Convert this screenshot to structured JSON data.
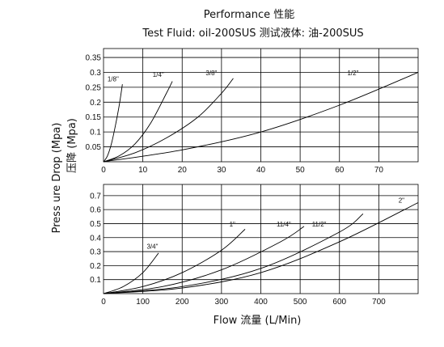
{
  "title": "Performance 性能",
  "subtitle": "Test Fluid: oil-200SUS 测试液体:  油-200SUS",
  "ylabel_en": "Press ure Drop (Mpa)",
  "ylabel_cn": "压降  (Mpa)",
  "xlabel": "Flow 流量 (L/Min)",
  "chart_data": [
    {
      "type": "line",
      "x_ticks": [
        0,
        10,
        20,
        30,
        40,
        50,
        60,
        70
      ],
      "y_ticks": [
        0.05,
        0.1,
        0.15,
        0.2,
        0.25,
        0.3,
        0.35
      ],
      "xlim": [
        0,
        80
      ],
      "ylim": [
        0,
        0.38
      ],
      "grid": true,
      "series": [
        {
          "name": "1/8\"",
          "x": [
            0,
            1,
            2,
            3,
            4,
            4.8
          ],
          "y": [
            0,
            0.02,
            0.06,
            0.12,
            0.19,
            0.26
          ],
          "label_at": [
            1,
            0.27
          ]
        },
        {
          "name": "1/4\"",
          "x": [
            0,
            4,
            8,
            12,
            16,
            17.5
          ],
          "y": [
            0,
            0.02,
            0.06,
            0.13,
            0.23,
            0.27
          ],
          "label_at": [
            12.5,
            0.285
          ]
        },
        {
          "name": "3/8\"",
          "x": [
            0,
            8,
            16,
            24,
            30,
            33
          ],
          "y": [
            0,
            0.03,
            0.08,
            0.15,
            0.23,
            0.28
          ],
          "label_at": [
            26,
            0.29
          ]
        },
        {
          "name": "1/2\"",
          "x": [
            0,
            20,
            40,
            60,
            80
          ],
          "y": [
            0,
            0.04,
            0.1,
            0.19,
            0.3
          ],
          "label_at": [
            62,
            0.29
          ]
        }
      ]
    },
    {
      "type": "line",
      "x_ticks": [
        0,
        100,
        200,
        300,
        400,
        500,
        600,
        700
      ],
      "y_ticks": [
        0.1,
        0.2,
        0.3,
        0.4,
        0.5,
        0.6,
        0.7
      ],
      "xlim": [
        0,
        800
      ],
      "ylim": [
        0,
        0.78
      ],
      "grid": true,
      "series": [
        {
          "name": "3/4\"",
          "x": [
            0,
            50,
            100,
            140
          ],
          "y": [
            0,
            0.05,
            0.15,
            0.29
          ],
          "label_at": [
            110,
            0.32
          ]
        },
        {
          "name": "1\"",
          "x": [
            0,
            100,
            200,
            300,
            360
          ],
          "y": [
            0,
            0.05,
            0.15,
            0.31,
            0.46
          ],
          "label_at": [
            320,
            0.48
          ]
        },
        {
          "name": "11/4\"",
          "x": [
            0,
            150,
            300,
            450,
            510
          ],
          "y": [
            0,
            0.05,
            0.17,
            0.37,
            0.48
          ],
          "label_at": [
            440,
            0.48
          ]
        },
        {
          "name": "11/2\"",
          "x": [
            0,
            200,
            400,
            600,
            660
          ],
          "y": [
            0,
            0.05,
            0.18,
            0.44,
            0.57
          ],
          "label_at": [
            530,
            0.48
          ]
        },
        {
          "name": "2\"",
          "x": [
            0,
            200,
            400,
            600,
            800
          ],
          "y": [
            0,
            0.04,
            0.15,
            0.37,
            0.65
          ],
          "label_at": [
            750,
            0.65
          ]
        }
      ]
    }
  ]
}
